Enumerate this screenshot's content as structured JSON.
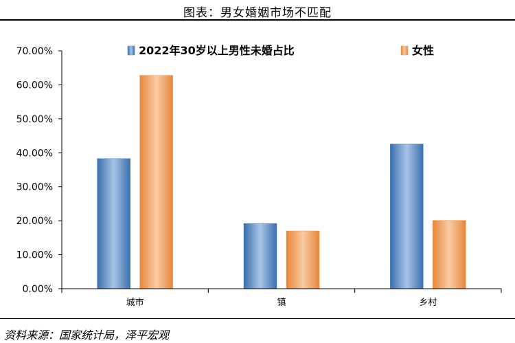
{
  "header": {
    "caption": "图表：男女婚姻市场不匹配"
  },
  "footer": {
    "source": "资料来源：国家统计局，泽平宏观"
  },
  "colors": {
    "male": "#4f81bd",
    "female": "#f79646"
  },
  "chart_data": {
    "type": "bar",
    "categories": [
      "城市",
      "镇",
      "乡村"
    ],
    "series": [
      {
        "name": "2022年30岁以上男性未婚占比",
        "values": [
          38.3,
          19.2,
          42.6
        ]
      },
      {
        "name": "女性",
        "values": [
          62.8,
          17.0,
          20.1
        ]
      }
    ],
    "ylim": [
      0,
      70
    ],
    "yticks": [
      "0.00%",
      "10.00%",
      "20.00%",
      "30.00%",
      "40.00%",
      "50.00%",
      "60.00%",
      "70.00%"
    ],
    "legend_position": "top",
    "grid": false
  }
}
